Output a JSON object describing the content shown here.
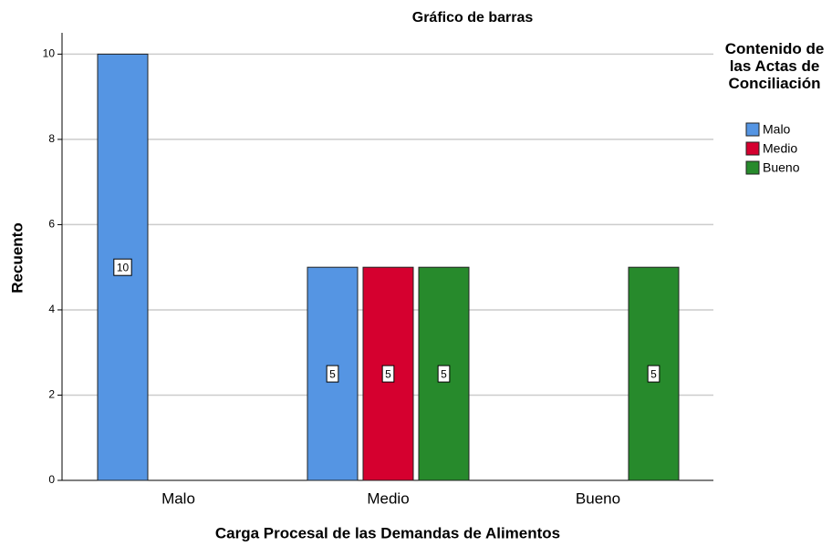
{
  "chart_data": {
    "type": "bar",
    "title": "Gráfico de barras",
    "xlabel": "Carga Procesal de las Demandas de Alimentos",
    "ylabel": "Recuento",
    "legend_title": "Contenido de las Actas de Conciliación",
    "legend": "right",
    "categories": [
      "Malo",
      "Medio",
      "Bueno"
    ],
    "series": [
      {
        "name": "Malo",
        "color": "#5595e3",
        "values": [
          10,
          5,
          null
        ]
      },
      {
        "name": "Medio",
        "color": "#d5002f",
        "values": [
          null,
          5,
          null
        ]
      },
      {
        "name": "Bueno",
        "color": "#278a2c",
        "values": [
          null,
          5,
          5
        ]
      }
    ],
    "ylim": [
      0,
      10.5
    ],
    "yticks": [
      0,
      2,
      4,
      6,
      8,
      10
    ],
    "grid": true
  }
}
